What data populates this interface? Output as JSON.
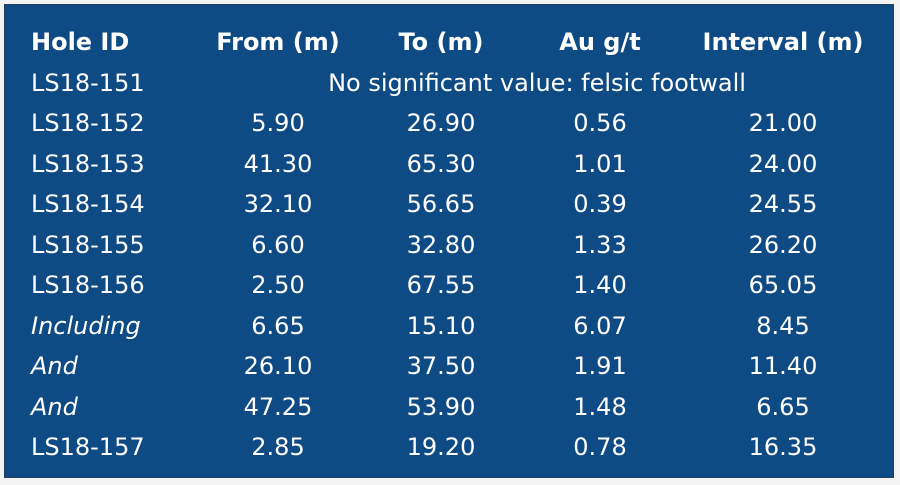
{
  "table": {
    "headers": [
      "Hole ID",
      "From (m)",
      "To (m)",
      "Au g/t",
      "Interval (m)"
    ],
    "note_row": {
      "hole_id": "LS18-151",
      "note": "No significant value: felsic footwall"
    },
    "rows": [
      {
        "hole_id": "LS18-152",
        "from": "5.90",
        "to": "26.90",
        "au": "0.56",
        "interval": "21.00",
        "italic": false
      },
      {
        "hole_id": "LS18-153",
        "from": "41.30",
        "to": "65.30",
        "au": "1.01",
        "interval": "24.00",
        "italic": false
      },
      {
        "hole_id": "LS18-154",
        "from": "32.10",
        "to": "56.65",
        "au": "0.39",
        "interval": "24.55",
        "italic": false
      },
      {
        "hole_id": "LS18-155",
        "from": "6.60",
        "to": "32.80",
        "au": "1.33",
        "interval": "26.20",
        "italic": false
      },
      {
        "hole_id": "LS18-156",
        "from": "2.50",
        "to": "67.55",
        "au": "1.40",
        "interval": "65.05",
        "italic": false
      },
      {
        "hole_id": "Including",
        "from": "6.65",
        "to": "15.10",
        "au": "6.07",
        "interval": "8.45",
        "italic": true
      },
      {
        "hole_id": "And",
        "from": "26.10",
        "to": "37.50",
        "au": "1.91",
        "interval": "11.40",
        "italic": true
      },
      {
        "hole_id": "And",
        "from": "47.25",
        "to": "53.90",
        "au": "1.48",
        "interval": "6.65",
        "italic": true
      },
      {
        "hole_id": "LS18-157",
        "from": "2.85",
        "to": "19.20",
        "au": "0.78",
        "interval": "16.35",
        "italic": false
      }
    ]
  },
  "colors": {
    "panel_background": "#0e4a84",
    "text": "#ffffff"
  }
}
